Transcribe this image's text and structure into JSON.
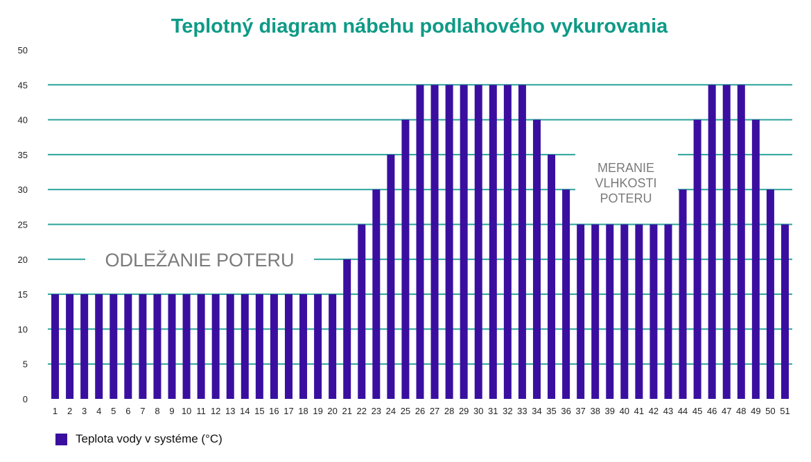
{
  "chart_data": {
    "type": "bar",
    "title": "Teplotný diagram nábehu podlahového vykurovania",
    "xlabel": "",
    "ylabel": "",
    "ylim": [
      0,
      50
    ],
    "yticks": [
      0,
      5,
      10,
      15,
      20,
      25,
      30,
      35,
      40,
      45,
      50
    ],
    "grid": true,
    "legend_position": "bottom-left",
    "categories": [
      "1",
      "2",
      "3",
      "4",
      "5",
      "6",
      "7",
      "8",
      "9",
      "10",
      "11",
      "12",
      "13",
      "14",
      "15",
      "16",
      "17",
      "18",
      "19",
      "20",
      "21",
      "22",
      "23",
      "24",
      "25",
      "26",
      "27",
      "28",
      "29",
      "30",
      "31",
      "32",
      "33",
      "34",
      "35",
      "36",
      "37",
      "38",
      "39",
      "40",
      "41",
      "42",
      "43",
      "44",
      "45",
      "46",
      "47",
      "48",
      "49",
      "50",
      "51"
    ],
    "series": [
      {
        "name": "Teplota vody v systéme (°C)",
        "color": "#3a0fa0",
        "values": [
          15,
          15,
          15,
          15,
          15,
          15,
          15,
          15,
          15,
          15,
          15,
          15,
          15,
          15,
          15,
          15,
          15,
          15,
          15,
          15,
          20,
          25,
          30,
          35,
          40,
          45,
          45,
          45,
          45,
          45,
          45,
          45,
          45,
          40,
          35,
          30,
          25,
          25,
          25,
          25,
          25,
          25,
          25,
          30,
          40,
          45,
          45,
          45,
          40,
          30,
          25
        ]
      }
    ],
    "annotations": [
      {
        "text": "ODLEŽANIE POTERU",
        "x_range": [
          3,
          19
        ],
        "y": 20
      },
      {
        "text": "MERANIE VLHKOSTI POTERU",
        "lines": [
          "MERANIE",
          "VLHKOSTI",
          "POTERU"
        ],
        "x_range": [
          37,
          43
        ],
        "y_range": [
          27,
          35
        ]
      }
    ]
  },
  "colors": {
    "title": "#0e9a86",
    "gridline": "#2aa39a",
    "bar": "#3a0fa0",
    "annotation_text": "#7a7a7a",
    "tick_text": "#222222"
  },
  "legend": {
    "label": "Teplota vody v systéme (°C)"
  }
}
